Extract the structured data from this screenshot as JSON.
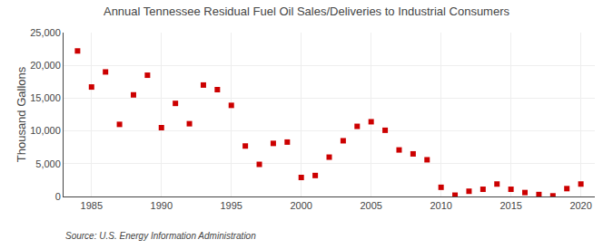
{
  "chart_data": {
    "type": "scatter",
    "title": "Annual Tennessee Residual Fuel Oil Sales/Deliveries to Industrial Consumers",
    "ylabel": "Thousand Gallons",
    "annotations": [
      "Source: U.S. Energy Information Administration"
    ],
    "color": "#cc0000",
    "marker": "square",
    "grid": true,
    "xlim": [
      1983,
      2021
    ],
    "ylim": [
      0,
      25000
    ],
    "xticks": [
      1985,
      1990,
      1995,
      2000,
      2005,
      2010,
      2015,
      2020
    ],
    "yticks": [
      0,
      {
        "value": 5000,
        "label": "5,000"
      },
      {
        "value": 10000,
        "label": "10,000"
      },
      {
        "value": 15000,
        "label": "15,000"
      },
      {
        "value": 20000,
        "label": "20,000"
      },
      {
        "value": 25000,
        "label": "25,000"
      }
    ],
    "x": [
      1984,
      1985,
      1986,
      1987,
      1988,
      1989,
      1990,
      1991,
      1992,
      1993,
      1994,
      1995,
      1996,
      1997,
      1998,
      1999,
      2000,
      2001,
      2002,
      2003,
      2004,
      2005,
      2006,
      2007,
      2008,
      2009,
      2010,
      2011,
      2012,
      2013,
      2014,
      2015,
      2016,
      2017,
      2018,
      2019,
      2020
    ],
    "values": [
      22200,
      16700,
      19000,
      11000,
      15500,
      18500,
      10500,
      14200,
      11100,
      17000,
      16300,
      13900,
      7700,
      4900,
      8100,
      8300,
      2900,
      3200,
      6000,
      8500,
      10700,
      11400,
      10100,
      7100,
      6500,
      5600,
      1400,
      200,
      800,
      1100,
      1900,
      1100,
      600,
      300,
      100,
      1200,
      1900
    ]
  }
}
